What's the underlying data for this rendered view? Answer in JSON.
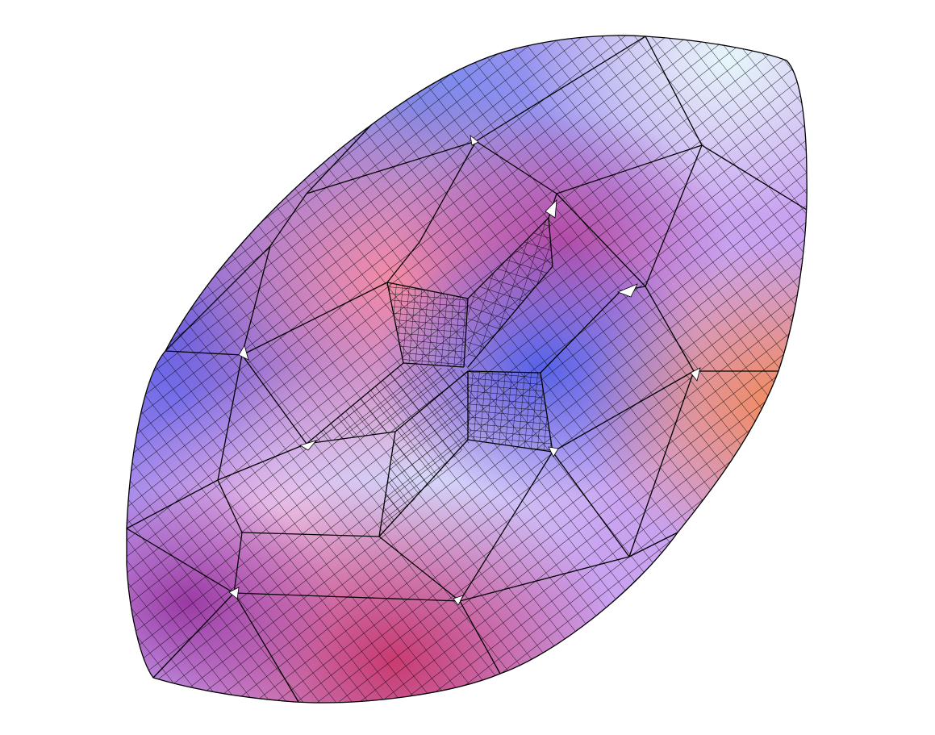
{
  "scene": {
    "background_color": "#ffffff",
    "mesh_line_color": "#000000",
    "palette": {
      "blue": "#5b62e6",
      "light_blue": "#a9c7fb",
      "cyan_white": "#dff3fb",
      "lavender": "#b58cf2",
      "pink": "#f3a3d2",
      "light_pink": "#f8c6df",
      "salmon": "#f07f8d",
      "orange": "#f58a5c",
      "magenta": "#b74aa7",
      "crimson": "#c63a6f"
    }
  }
}
